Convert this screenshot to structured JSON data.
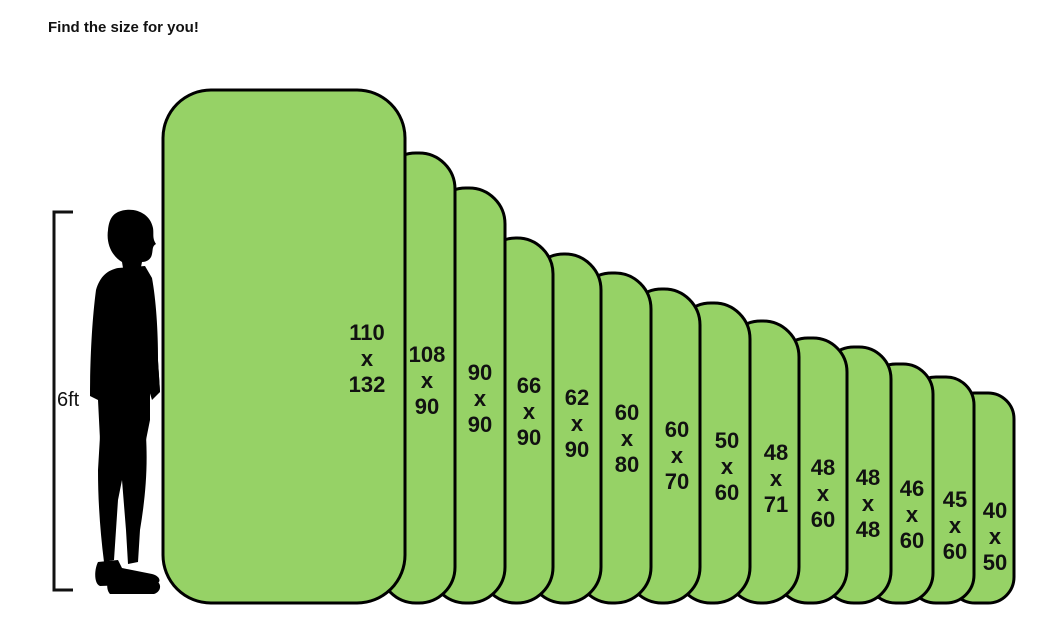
{
  "title": "Find the size for you!",
  "person": {
    "height_label": "6ft"
  },
  "colors": {
    "panel_fill": "#96D266",
    "panel_stroke": "#000000",
    "text": "#111111"
  },
  "sizes": [
    {
      "w": "110",
      "x": "x",
      "h": "132"
    },
    {
      "w": "108",
      "x": "x",
      "h": "90"
    },
    {
      "w": "90",
      "x": "x",
      "h": "90"
    },
    {
      "w": "66",
      "x": "x",
      "h": "90"
    },
    {
      "w": "62",
      "x": "x",
      "h": "90"
    },
    {
      "w": "60",
      "x": "x",
      "h": "80"
    },
    {
      "w": "60",
      "x": "x",
      "h": "70"
    },
    {
      "w": "50",
      "x": "x",
      "h": "60"
    },
    {
      "w": "48",
      "x": "x",
      "h": "71"
    },
    {
      "w": "48",
      "x": "x",
      "h": "60"
    },
    {
      "w": "48",
      "x": "x",
      "h": "48"
    },
    {
      "w": "46",
      "x": "x",
      "h": "60"
    },
    {
      "w": "45",
      "x": "x",
      "h": "60"
    },
    {
      "w": "40",
      "x": "x",
      "h": "50"
    }
  ]
}
